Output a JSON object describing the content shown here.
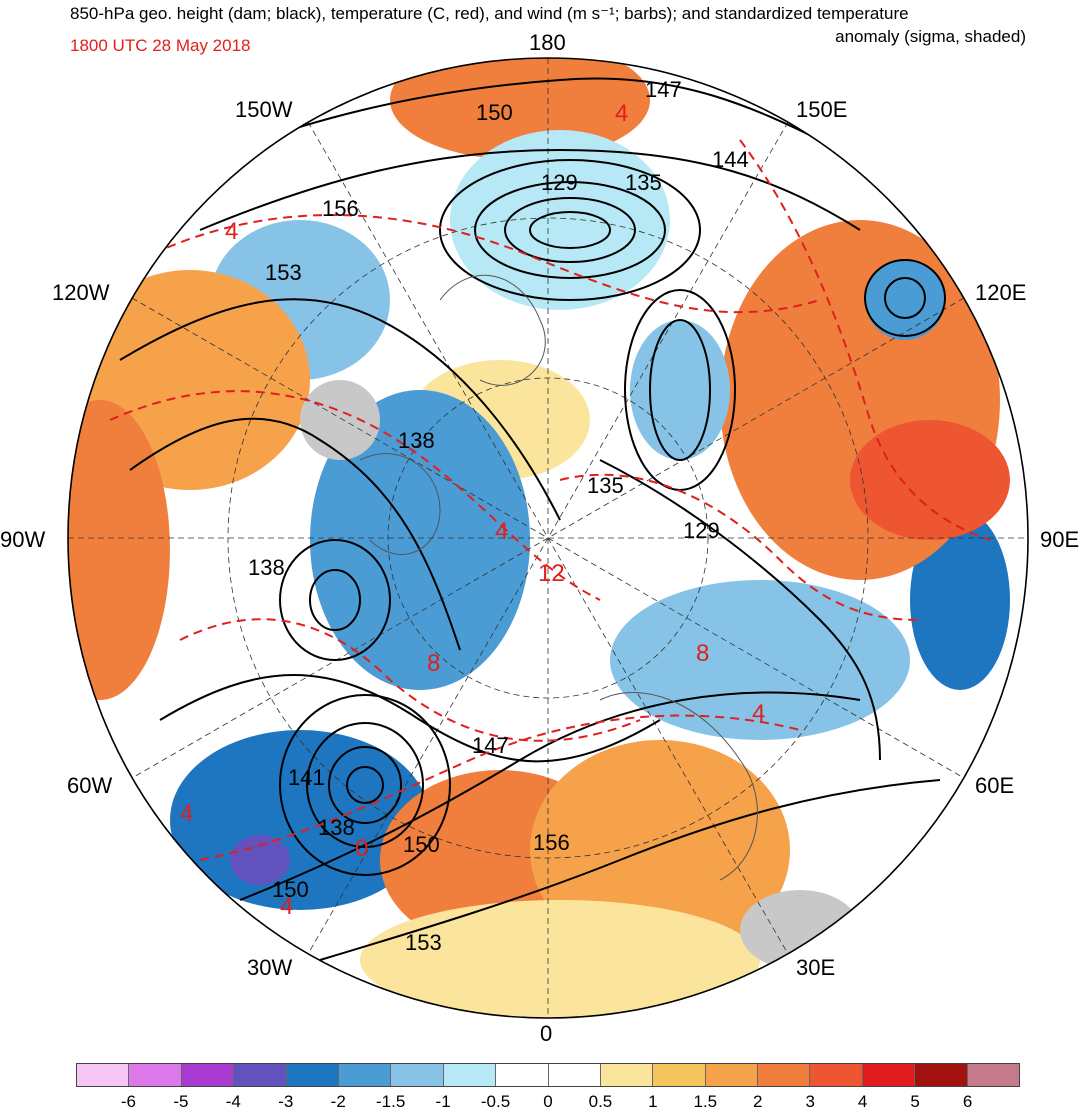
{
  "title": {
    "line1": "850-hPa geo. height (dam; black), temperature (C, red), and wind (m s⁻¹; barbs); and standardized temperature",
    "line2": "anomaly (sigma, shaded)"
  },
  "valid_time": "1800 UTC 28 May 2018",
  "longitude_labels": {
    "lon_180": "180",
    "lon_150e": "150E",
    "lon_120e": "120E",
    "lon_90e": "90E",
    "lon_60e": "60E",
    "lon_30e": "30E",
    "lon_0": "0",
    "lon_30w": "30W",
    "lon_60w": "60W",
    "lon_90w": "90W",
    "lon_120w": "120W",
    "lon_150w": "150W"
  },
  "height_contour_labels": [
    "147",
    "150",
    "144",
    "129",
    "135",
    "156",
    "153",
    "138",
    "135",
    "129",
    "138",
    "147",
    "141",
    "138",
    "150",
    "156",
    "150",
    "153"
  ],
  "temperature_contour_labels": [
    "4",
    "4",
    "4",
    "12",
    "8",
    "8",
    "4",
    "4",
    "4",
    "0"
  ],
  "colors": {
    "height_contours": "#000000",
    "temperature_contours": "#e0201c",
    "land_gray": "#c8c8c8",
    "coastline": "#555555"
  },
  "colorbar": {
    "ticks": [
      "-6",
      "-5",
      "-4",
      "-3",
      "-2",
      "-1.5",
      "-1",
      "-0.5",
      "0",
      "0.5",
      "1",
      "1.5",
      "2",
      "3",
      "4",
      "5",
      "6"
    ],
    "colors": [
      "#f6c6f4",
      "#dc78ea",
      "#a93bd0",
      "#6252bd",
      "#1d76bf",
      "#4b9bd4",
      "#87c3e7",
      "#b7e8f5",
      "#ffffff",
      "#ffffff",
      "#fbe59d",
      "#f7c55f",
      "#f5a24b",
      "#f07f3d",
      "#ee5531",
      "#e21c1c",
      "#a1120e",
      "#c47a8b"
    ]
  }
}
